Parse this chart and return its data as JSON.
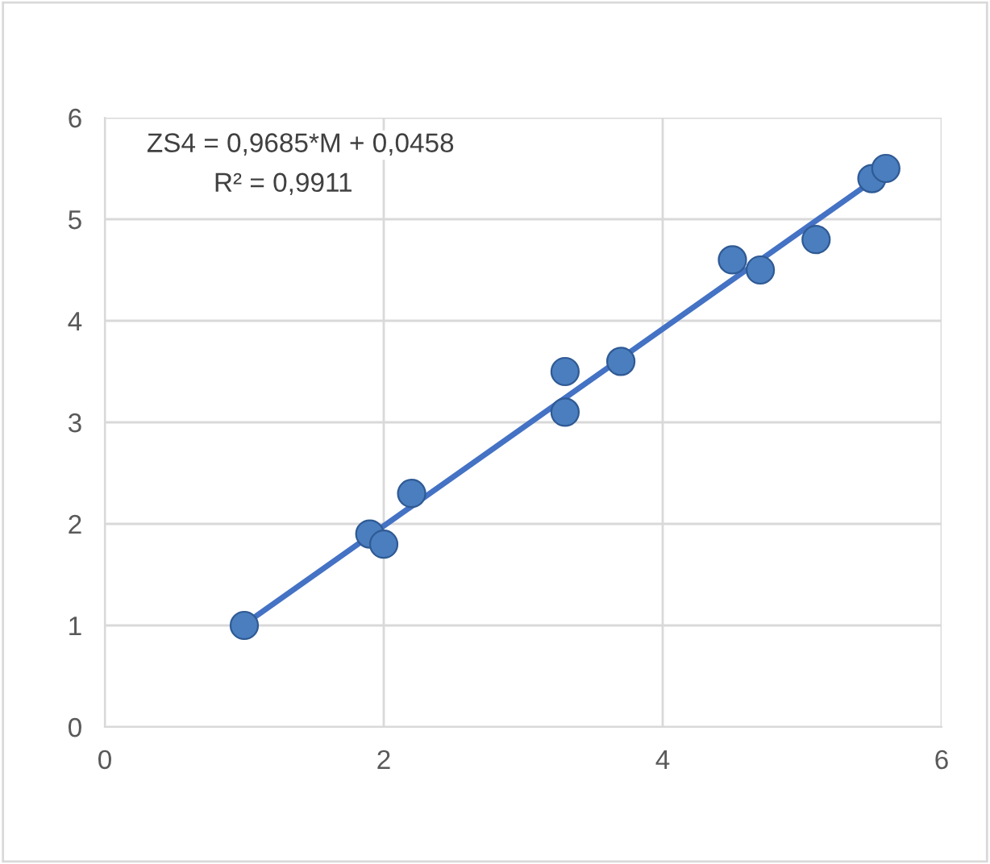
{
  "chart_data": {
    "type": "scatter",
    "x": [
      1.0,
      1.9,
      2.0,
      2.2,
      3.3,
      3.3,
      3.7,
      4.5,
      4.7,
      5.1,
      5.5,
      5.6
    ],
    "series": [
      {
        "color": "#4a7ebf",
        "marker": "circle",
        "values": [
          1.0,
          1.9,
          1.8,
          2.3,
          3.5,
          3.1,
          3.6,
          4.6,
          4.5,
          4.8,
          5.4,
          5.5
        ]
      },
      {
        "type": "line",
        "marker": "none",
        "color": "#4472c4",
        "x": [
          1.0,
          5.6
        ],
        "values": [
          1.01,
          5.47
        ]
      }
    ],
    "xlim": [
      0,
      6
    ],
    "xticks": [
      0,
      2,
      4,
      6
    ],
    "ylim": [
      0,
      6
    ],
    "yticks": [
      0,
      1,
      2,
      3,
      4,
      5,
      6
    ],
    "grid": true,
    "annotations": [
      "ZS4 = 0,9685*M + 0,0458",
      "R² = 0,9911"
    ]
  }
}
